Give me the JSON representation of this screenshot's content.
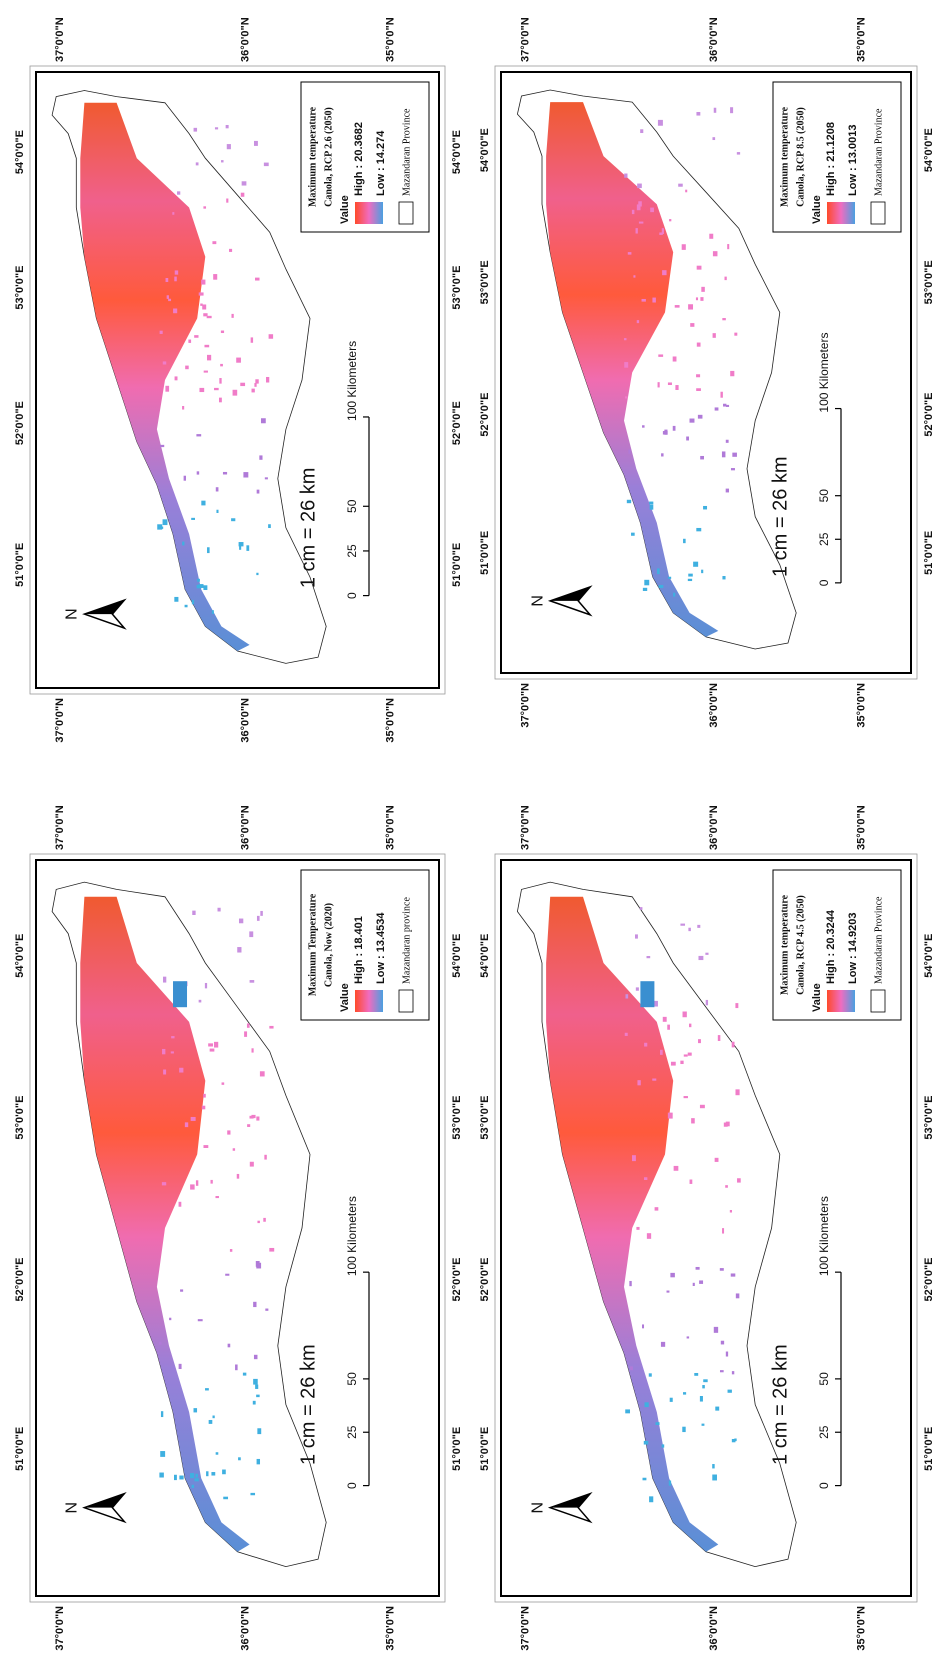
{
  "panels": [
    {
      "title": [
        "Maximum temperature",
        "Canola, RCP 2.6 (2050)"
      ],
      "value_label": "Value",
      "high": "High : 20.3682",
      "low": "Low : 14.274",
      "boundary": "Mazandaran Province",
      "scale_text": "1 cm = 26 km",
      "scale_ticks": [
        "0",
        "25",
        "50",
        "100 Kilometers"
      ],
      "north": "N",
      "lon_labels_top": [
        "51°0'0\"E",
        "52°0'0\"E",
        "53°0'0\"E",
        "54°0'0\"E"
      ],
      "lon_labels_bottom": [
        "51°0'0\"E",
        "52°0'0\"E",
        "53°0'0\"E",
        "54°0'0\"E"
      ],
      "lat_labels_left": [
        "37°0'0\"N",
        "36°0'0\"N",
        "35°0'0\"N"
      ],
      "lat_labels_right": [
        "37°0'0\"N",
        "36°0'0\"N",
        "35°0'0\"N"
      ]
    },
    {
      "title": [
        "Maximum temperature",
        "Canola, RCP 8.5 (2050)"
      ],
      "value_label": "Value",
      "high": "High : 21.1208",
      "low": "Low : 13.0013",
      "boundary": "Mazandaran Province",
      "scale_text": "1 cm = 26 km",
      "scale_ticks": [
        "0",
        "25",
        "50",
        "100 Kilometers"
      ],
      "north": "N",
      "lon_labels_top": [
        "51°0'0\"E",
        "52°0'0\"E",
        "53°0'0\"E",
        "54°0'0\"E"
      ],
      "lon_labels_bottom": [
        "51°0'0\"E",
        "52°0'0\"E",
        "53°0'0\"E",
        "54°0'0\"E"
      ],
      "lat_labels_left": [
        "37°0'0\"N",
        "36°0'0\"N",
        "35°0'0\"N"
      ],
      "lat_labels_right": [
        "37°0'0\"N",
        "36°0'0\"N",
        "35°0'0\"N"
      ]
    },
    {
      "title": [
        "Maximum Temperature",
        "Canola, Now (2020)"
      ],
      "value_label": "Value",
      "high": "High : 18.401",
      "low": "Low : 13.4534",
      "boundary": "Mazandaran province",
      "scale_text": "1 cm = 26 km",
      "scale_ticks": [
        "0",
        "25",
        "50",
        "100 Kilometers"
      ],
      "north": "N",
      "lon_labels_top": [
        "51°0'0\"E",
        "52°0'0\"E",
        "53°0'0\"E",
        "54°0'0\"E"
      ],
      "lon_labels_bottom": [
        "51°0'0\"E",
        "52°0'0\"E",
        "53°0'0\"E",
        "54°0'0\"E"
      ],
      "lat_labels_left": [
        "37°0'0\"N",
        "36°0'0\"N",
        "35°0'0\"N"
      ],
      "lat_labels_right": [
        "37°0'0\"N",
        "36°0'0\"N",
        "35°0'0\"N"
      ]
    },
    {
      "title": [
        "Maximum temperature",
        "Canola, RCP 4.5 (2050)"
      ],
      "value_label": "Value",
      "high": "High : 20.3244",
      "low": "Low : 14.9203",
      "boundary": "Mazandaran Province",
      "scale_text": "1 cm = 26 km",
      "scale_ticks": [
        "0",
        "25",
        "50",
        "100 Kilometers"
      ],
      "north": "N",
      "lon_labels_top": [
        "51°0'0\"E",
        "52°0'0\"E",
        "53°0'0\"E",
        "54°0'0\"E"
      ],
      "lon_labels_bottom": [
        "51°0'0\"E",
        "52°0'0\"E",
        "53°0'0\"E",
        "54°0'0\"E"
      ],
      "lat_labels_left": [
        "37°0'0\"N",
        "36°0'0\"N",
        "35°0'0\"N"
      ],
      "lat_labels_right": [
        "37°0'0\"N",
        "36°0'0\"N",
        "35°0'0\"N"
      ]
    }
  ]
}
